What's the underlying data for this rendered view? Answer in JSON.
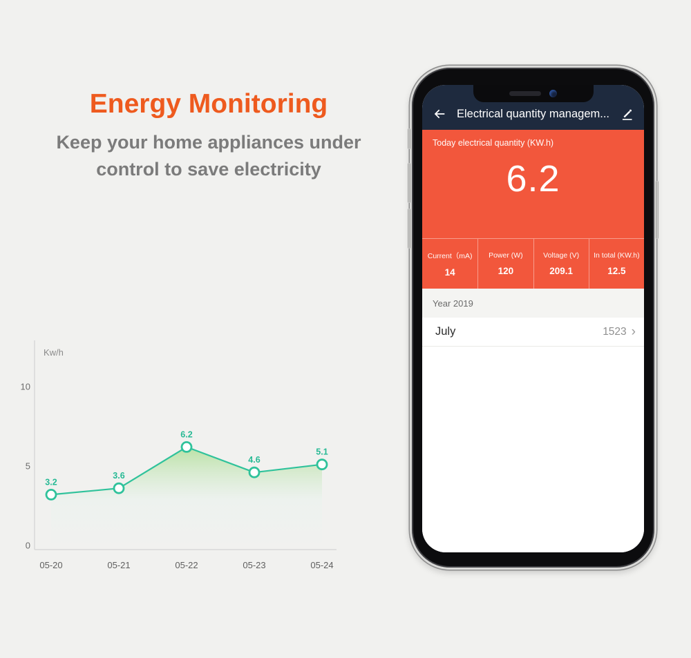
{
  "hero": {
    "title": "Energy Monitoring",
    "subtitle": "Keep your home appliances under\ncontrol to save electricity"
  },
  "chart_data": {
    "type": "line",
    "title": "",
    "ylabel": "Kw/h",
    "xlabel": "",
    "categories": [
      "05-20",
      "05-21",
      "05-22",
      "05-23",
      "05-24"
    ],
    "values": [
      3.2,
      3.6,
      6.2,
      4.6,
      5.1
    ],
    "point_labels": [
      "3.2",
      "3.6",
      "6.2",
      "4.6",
      "5.1"
    ],
    "yticks": [
      0,
      5,
      10
    ],
    "ylim": [
      0,
      12
    ],
    "grid": false,
    "legend": "none",
    "line_color": "#2fc29b",
    "marker_fill": "#ffffff",
    "label_color": "#26b994",
    "area_top_color": "#a8dc8c",
    "area_bottom_color": "#e8f3ee",
    "axis_color": "#d8d8d8",
    "tick_color": "#5f5f5f",
    "unit_label_color": "#8a8a8a"
  },
  "phone": {
    "nav": {
      "title": "Electrical quantity managem..."
    },
    "today": {
      "label": "Today electrical quantity (KW.h)",
      "value": "6.2"
    },
    "stats": [
      {
        "label": "Current（mA)",
        "value": "14"
      },
      {
        "label": "Power (W)",
        "value": "120"
      },
      {
        "label": "Voltage (V)",
        "value": "209.1"
      },
      {
        "label": "In total (KW.h)",
        "value": "12.5"
      }
    ],
    "year_row": {
      "label": "Year 2019"
    },
    "month_row": {
      "label": "July",
      "value": "1523",
      "chevron": "›"
    }
  },
  "colors": {
    "page_background": "#f1f1ef",
    "hero_title_orange": "#ee5a1e",
    "hero_subtitle_gray": "#7b7b7b",
    "app_orange": "#f2573c",
    "header_navy": "#1e2a3e",
    "chart_teal": "#2fc29b"
  }
}
